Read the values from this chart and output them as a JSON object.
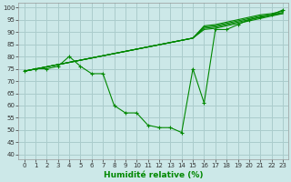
{
  "xlabel": "Humidité relative (%)",
  "bg_color": "#cce8e8",
  "grid_color": "#aacccc",
  "line_color": "#008800",
  "xlim": [
    -0.5,
    23.5
  ],
  "ylim": [
    38,
    102
  ],
  "yticks": [
    40,
    45,
    50,
    55,
    60,
    65,
    70,
    75,
    80,
    85,
    90,
    95,
    100
  ],
  "xticks": [
    0,
    1,
    2,
    3,
    4,
    5,
    6,
    7,
    8,
    9,
    10,
    11,
    12,
    13,
    14,
    15,
    16,
    17,
    18,
    19,
    20,
    21,
    22,
    23
  ],
  "main_series": [
    74,
    75,
    75,
    76,
    80,
    76,
    73,
    73,
    60,
    57,
    57,
    52,
    51,
    51,
    49,
    75,
    61,
    91,
    91,
    93,
    95,
    96,
    97,
    99
  ],
  "straight_series": [
    [
      74,
      74.9,
      75.8,
      76.7,
      77.6,
      78.5,
      79.4,
      80.3,
      81.2,
      82.1,
      83.0,
      83.9,
      84.8,
      85.7,
      86.6,
      87.5,
      91.0,
      91.5,
      92.5,
      93.5,
      94.5,
      95.5,
      96.5,
      97.5
    ],
    [
      74,
      74.9,
      75.8,
      76.7,
      77.6,
      78.5,
      79.4,
      80.3,
      81.2,
      82.1,
      83.0,
      83.9,
      84.8,
      85.7,
      86.6,
      87.5,
      91.5,
      92.0,
      93.0,
      94.0,
      95.0,
      96.0,
      97.0,
      97.5
    ],
    [
      74,
      74.9,
      75.8,
      76.7,
      77.6,
      78.5,
      79.4,
      80.3,
      81.2,
      82.1,
      83.0,
      83.9,
      84.8,
      85.7,
      86.6,
      87.5,
      92.0,
      92.5,
      93.5,
      94.5,
      95.5,
      96.5,
      97.0,
      98.0
    ],
    [
      74,
      74.9,
      75.8,
      76.7,
      77.6,
      78.5,
      79.4,
      80.3,
      81.2,
      82.1,
      83.0,
      83.9,
      84.8,
      85.7,
      86.6,
      87.5,
      92.5,
      93.0,
      94.0,
      95.0,
      96.0,
      97.0,
      97.5,
      98.5
    ]
  ],
  "xlabel_fontsize": 6.5,
  "tick_fontsize": 5.0
}
